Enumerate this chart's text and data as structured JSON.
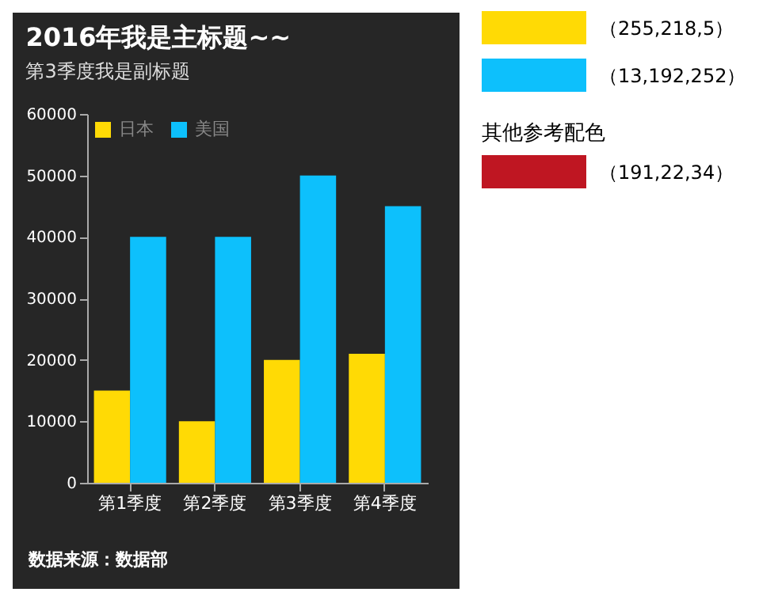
{
  "chart_data": {
    "type": "bar",
    "title": "2016年我是主标题~~",
    "subtitle": "第3季度我是副标题",
    "categories": [
      "第1季度",
      "第2季度",
      "第3季度",
      "第4季度"
    ],
    "series": [
      {
        "name": "日本",
        "color": "#ffda05",
        "values": [
          15000,
          10000,
          20000,
          21000
        ]
      },
      {
        "name": "美国",
        "color": "#0dc0fc",
        "values": [
          40000,
          40000,
          50000,
          45000
        ]
      }
    ],
    "ylim": [
      0,
      60000
    ],
    "yticks": [
      0,
      10000,
      20000,
      30000,
      40000,
      50000,
      60000
    ],
    "grid": false,
    "legend": "top left",
    "annotations": [
      "数据来源：数据部",
      "（255,218,5）",
      "（13,192,252）",
      "其他参考配色",
      "（191,22,34）"
    ]
  }
}
